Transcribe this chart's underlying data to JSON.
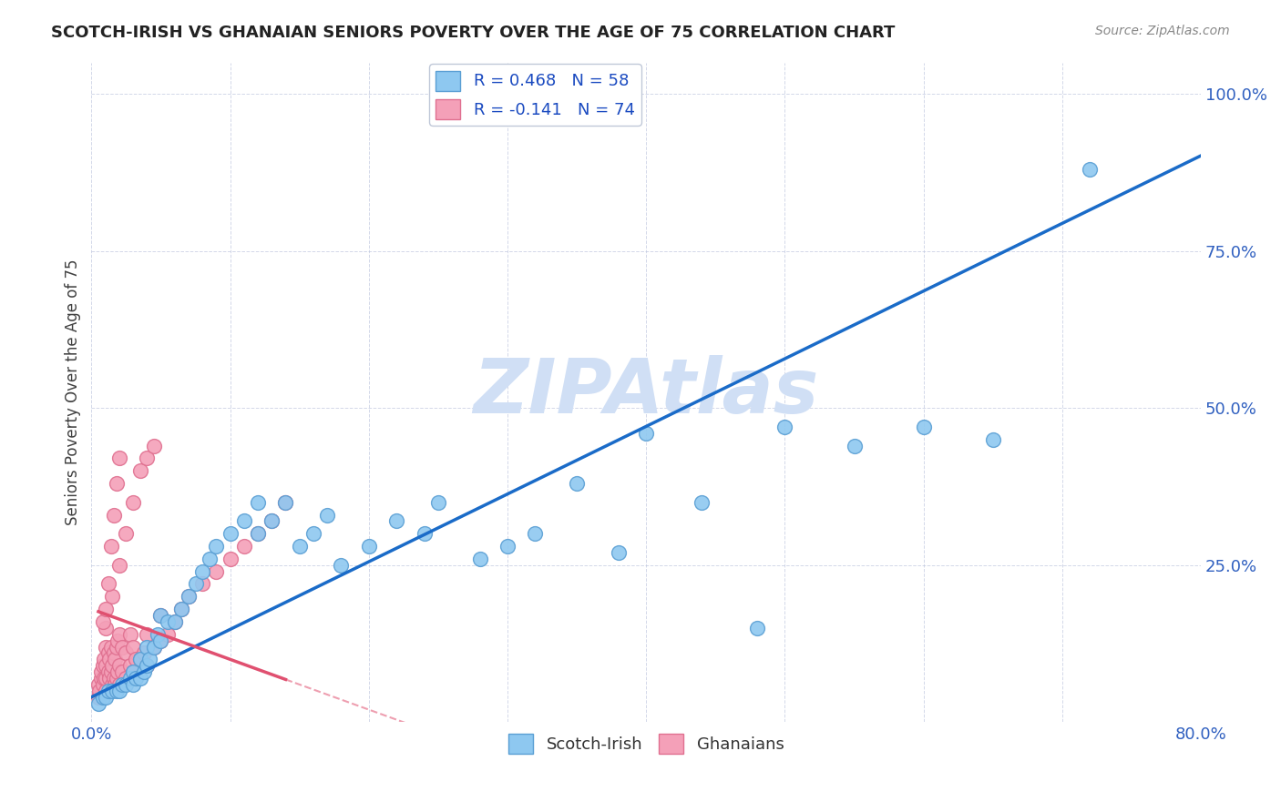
{
  "title": "SCOTCH-IRISH VS GHANAIAN SENIORS POVERTY OVER THE AGE OF 75 CORRELATION CHART",
  "source": "Source: ZipAtlas.com",
  "ylabel": "Seniors Poverty Over the Age of 75",
  "xlim": [
    0.0,
    0.8
  ],
  "ylim": [
    0.0,
    1.05
  ],
  "scotch_irish_R": 0.468,
  "scotch_irish_N": 58,
  "ghanaian_R": -0.141,
  "ghanaian_N": 74,
  "scotch_irish_color": "#8ec8f0",
  "ghanaian_color": "#f4a0b8",
  "scotch_irish_edge": "#5a9fd4",
  "ghanaian_edge": "#e07090",
  "trend_blue": "#1a6bc8",
  "trend_pink": "#e05070",
  "background_color": "#ffffff",
  "watermark": "ZIPAtlas",
  "watermark_color": "#d0dff5",
  "scotch_irish_x": [
    0.005,
    0.008,
    0.01,
    0.012,
    0.015,
    0.018,
    0.02,
    0.022,
    0.025,
    0.028,
    0.03,
    0.03,
    0.032,
    0.035,
    0.035,
    0.038,
    0.04,
    0.04,
    0.042,
    0.045,
    0.048,
    0.05,
    0.05,
    0.055,
    0.06,
    0.065,
    0.07,
    0.075,
    0.08,
    0.085,
    0.09,
    0.1,
    0.11,
    0.12,
    0.12,
    0.13,
    0.14,
    0.15,
    0.16,
    0.17,
    0.18,
    0.2,
    0.22,
    0.24,
    0.25,
    0.28,
    0.3,
    0.32,
    0.35,
    0.38,
    0.4,
    0.44,
    0.48,
    0.5,
    0.55,
    0.6,
    0.65,
    0.72
  ],
  "scotch_irish_y": [
    0.03,
    0.04,
    0.04,
    0.05,
    0.05,
    0.05,
    0.05,
    0.06,
    0.06,
    0.07,
    0.06,
    0.08,
    0.07,
    0.07,
    0.1,
    0.08,
    0.09,
    0.12,
    0.1,
    0.12,
    0.14,
    0.13,
    0.17,
    0.16,
    0.16,
    0.18,
    0.2,
    0.22,
    0.24,
    0.26,
    0.28,
    0.3,
    0.32,
    0.3,
    0.35,
    0.32,
    0.35,
    0.28,
    0.3,
    0.33,
    0.25,
    0.28,
    0.32,
    0.3,
    0.35,
    0.26,
    0.28,
    0.3,
    0.38,
    0.27,
    0.46,
    0.35,
    0.15,
    0.47,
    0.44,
    0.47,
    0.45,
    0.88
  ],
  "ghanaian_x": [
    0.005,
    0.005,
    0.006,
    0.007,
    0.007,
    0.008,
    0.008,
    0.009,
    0.009,
    0.01,
    0.01,
    0.01,
    0.01,
    0.01,
    0.012,
    0.012,
    0.013,
    0.013,
    0.014,
    0.014,
    0.015,
    0.015,
    0.016,
    0.016,
    0.017,
    0.017,
    0.018,
    0.018,
    0.019,
    0.019,
    0.02,
    0.02,
    0.02,
    0.022,
    0.022,
    0.025,
    0.025,
    0.028,
    0.028,
    0.03,
    0.03,
    0.032,
    0.035,
    0.038,
    0.04,
    0.04,
    0.045,
    0.05,
    0.05,
    0.055,
    0.06,
    0.065,
    0.07,
    0.08,
    0.09,
    0.1,
    0.11,
    0.12,
    0.13,
    0.14,
    0.015,
    0.02,
    0.025,
    0.03,
    0.035,
    0.04,
    0.045,
    0.008,
    0.01,
    0.012,
    0.014,
    0.016,
    0.018,
    0.02
  ],
  "ghanaian_y": [
    0.04,
    0.06,
    0.05,
    0.07,
    0.08,
    0.06,
    0.09,
    0.07,
    0.1,
    0.05,
    0.07,
    0.09,
    0.12,
    0.15,
    0.08,
    0.11,
    0.07,
    0.1,
    0.08,
    0.12,
    0.06,
    0.09,
    0.07,
    0.11,
    0.06,
    0.1,
    0.07,
    0.12,
    0.08,
    0.13,
    0.06,
    0.09,
    0.14,
    0.08,
    0.12,
    0.07,
    0.11,
    0.09,
    0.14,
    0.08,
    0.12,
    0.1,
    0.1,
    0.11,
    0.09,
    0.14,
    0.12,
    0.13,
    0.17,
    0.14,
    0.16,
    0.18,
    0.2,
    0.22,
    0.24,
    0.26,
    0.28,
    0.3,
    0.32,
    0.35,
    0.2,
    0.25,
    0.3,
    0.35,
    0.4,
    0.42,
    0.44,
    0.16,
    0.18,
    0.22,
    0.28,
    0.33,
    0.38,
    0.42
  ]
}
